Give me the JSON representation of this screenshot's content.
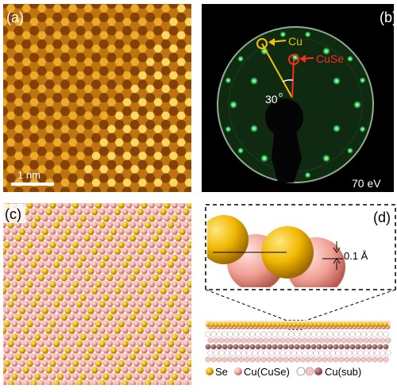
{
  "panels": {
    "a": {
      "label": "(a)",
      "scale_bar": "1 nm"
    },
    "b": {
      "label": "(b)",
      "spot_cu": "Cu",
      "spot_cuse": "CuSe",
      "angle": "30",
      "energy": "70 eV"
    },
    "c": {
      "label": "(c)"
    },
    "d": {
      "label": "(d)",
      "height": "0.1 Å",
      "legend": [
        {
          "text": "Se"
        },
        {
          "text": "Cu(CuSe)"
        },
        {
          "text": "Cu(sub)"
        }
      ]
    }
  },
  "colors": {
    "se": "#f0b800",
    "cu_cuse": "#f4a7a1",
    "cu_sub_light": "#ffffff",
    "cu_sub_dark": "#8b4040",
    "leed_green": "#39e060",
    "arrow_cu": "#f5c000",
    "arrow_cuse": "#ff2a1a"
  }
}
